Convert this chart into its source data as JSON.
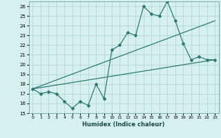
{
  "xlabel": "Humidex (Indice chaleur)",
  "ylabel": "",
  "xlim": [
    -0.5,
    23.5
  ],
  "ylim": [
    15,
    26.5
  ],
  "yticks": [
    15,
    16,
    17,
    18,
    19,
    20,
    21,
    22,
    23,
    24,
    25,
    26
  ],
  "xticks": [
    0,
    1,
    2,
    3,
    4,
    5,
    6,
    7,
    8,
    9,
    10,
    11,
    12,
    13,
    14,
    15,
    16,
    17,
    18,
    19,
    20,
    21,
    22,
    23
  ],
  "bg_color": "#d6f0f0",
  "line_color": "#2d7a6e",
  "grid_color": "#b0d8d0",
  "main_x": [
    0,
    1,
    2,
    3,
    4,
    5,
    6,
    7,
    8,
    9,
    10,
    11,
    12,
    13,
    14,
    15,
    16,
    17,
    18,
    19,
    20,
    21,
    22,
    23
  ],
  "main_y": [
    17.5,
    17.0,
    17.2,
    17.0,
    16.2,
    15.5,
    16.2,
    15.8,
    18.0,
    16.5,
    21.5,
    22.0,
    23.3,
    23.0,
    26.0,
    25.2,
    25.0,
    26.5,
    24.5,
    22.2,
    20.5,
    20.8,
    20.5,
    20.5
  ],
  "trend1_x": [
    0,
    23
  ],
  "trend1_y": [
    17.5,
    20.5
  ],
  "trend2_x": [
    0,
    23
  ],
  "trend2_y": [
    17.5,
    24.5
  ]
}
